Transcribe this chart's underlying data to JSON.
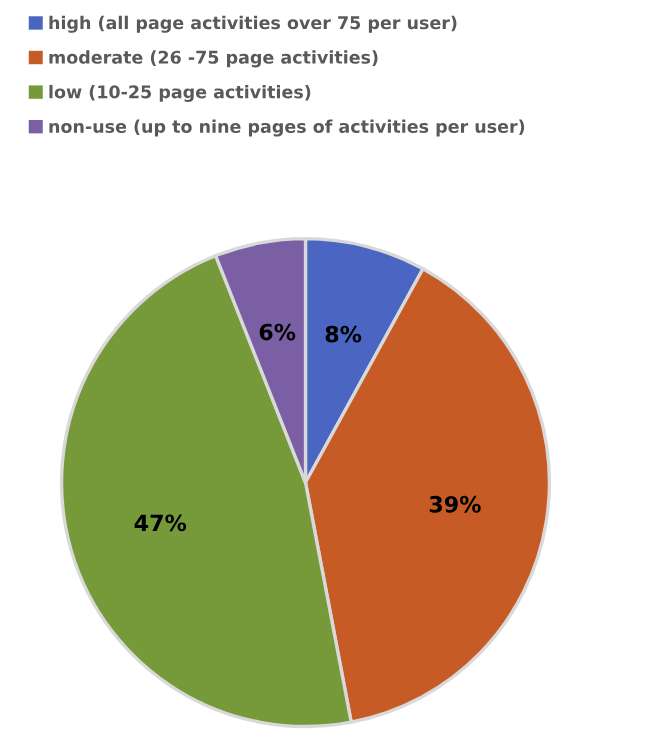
{
  "chart_data": {
    "type": "pie",
    "categories": [
      "high (all page activities over 75 per user)",
      "moderate (26 -75 page activities)",
      "low (10-25 page activities)",
      "non-use (up to nine pages of activities per user)"
    ],
    "values": [
      8,
      39,
      47,
      6
    ],
    "colors": [
      "#4a66c2",
      "#c75b26",
      "#76993a",
      "#7b5fa5"
    ],
    "value_labels": [
      "8%",
      "39%",
      "47%",
      "6%"
    ],
    "legend": "top"
  }
}
